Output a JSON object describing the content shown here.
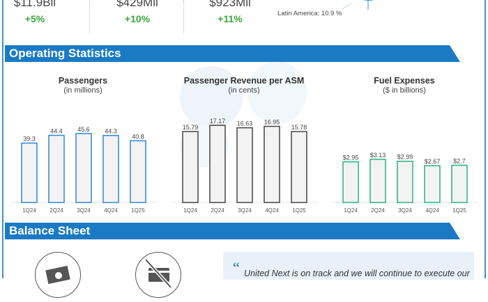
{
  "top_stats": [
    {
      "value": "$11.9Bil",
      "change": "+5%"
    },
    {
      "value": "$429Mil",
      "change": "+10%"
    },
    {
      "value": "$923Mil",
      "change": "+11%"
    }
  ],
  "pie_label": "Latin America: 10.9 %",
  "sections": {
    "operating": "Operating Statistics",
    "balance": "Balance Sheet"
  },
  "chart_data": [
    {
      "type": "bar",
      "title": "Passengers",
      "subtitle": "(in millions)",
      "categories": [
        "1Q24",
        "2Q24",
        "3Q24",
        "4Q24",
        "1Q25"
      ],
      "values": [
        39.3,
        44.4,
        45.6,
        44.3,
        40.8
      ],
      "labels": [
        "39.3",
        "44.4",
        "45.6",
        "44.3",
        "40.8"
      ],
      "color": "#2f86d6",
      "ylim": [
        0,
        52
      ]
    },
    {
      "type": "bar",
      "title": "Passenger Revenue per ASM",
      "subtitle": "(in cents)",
      "categories": [
        "1Q24",
        "2Q24",
        "3Q24",
        "4Q24",
        "1Q25"
      ],
      "values": [
        15.79,
        17.17,
        16.63,
        16.95,
        15.78
      ],
      "labels": [
        "15.79",
        "17.17",
        "16.63",
        "16.95",
        "15.78"
      ],
      "color": "#444444",
      "ylim": [
        0,
        17.5
      ]
    },
    {
      "type": "bar",
      "title": "Fuel Expenses",
      "subtitle": "($ in billions)",
      "categories": [
        "1Q24",
        "2Q24",
        "3Q24",
        "4Q24",
        "1Q25"
      ],
      "values": [
        2.95,
        3.13,
        2.99,
        2.67,
        2.7
      ],
      "labels": [
        "$2.95",
        "$3.13",
        "$2.99",
        "$2.67",
        "$2.7"
      ],
      "color": "#2bb07f",
      "ylim": [
        0,
        5.7
      ]
    }
  ],
  "quote": "United Next is on track and we will continue to execute our",
  "quote_mark": "“"
}
